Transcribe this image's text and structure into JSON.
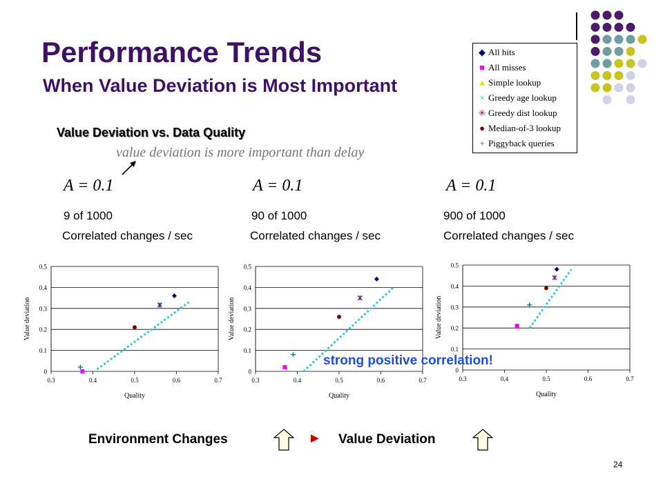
{
  "slide": {
    "title": "Performance Trends",
    "subtitle": "When Value Deviation is Most Important",
    "heading": "Value Deviation vs. Data Quality",
    "note": "value deviation is more important than delay",
    "correlation_note": "strong positive correlation!",
    "flow": {
      "left": "Environment Changes",
      "arrow": "►",
      "right": "Value Deviation"
    },
    "page_number": "24"
  },
  "legend": [
    {
      "label": "All hits",
      "symbol": "◆",
      "color": "#000080"
    },
    {
      "label": "All misses",
      "symbol": "■",
      "color": "#ff00ff"
    },
    {
      "label": "Simple lookup",
      "symbol": "▲",
      "color": "#e6e600"
    },
    {
      "label": "Greedy age lookup",
      "symbol": "×",
      "color": "#00cccc"
    },
    {
      "label": "Greedy dist lookup",
      "symbol": "✳",
      "color": "#800080"
    },
    {
      "label": "Median-of-3 lookup",
      "symbol": "●",
      "color": "#800000"
    },
    {
      "label": "Piggyback queries",
      "symbol": "+",
      "color": "#008080"
    }
  ],
  "panels": [
    {
      "a_label": "A = 0.1",
      "count": "9 of 1000",
      "caption": "Correlated changes / sec"
    },
    {
      "a_label": "A = 0.1",
      "count": "90 of 1000",
      "caption": "Correlated changes / sec"
    },
    {
      "a_label": "A = 0.1",
      "count": "900 of 1000",
      "caption": "Correlated changes / sec"
    }
  ],
  "decor_colors": {
    "purple": "#4b1c6a",
    "teal": "#6f9e9e",
    "olive": "#c8c41e",
    "lavender": "#d2d2e6"
  },
  "chart_data": [
    {
      "type": "scatter",
      "xlabel": "Quality",
      "ylabel": "Value deviation",
      "xlim": [
        0.3,
        0.7
      ],
      "ylim": [
        0,
        0.5
      ],
      "xticks": [
        "0.3",
        "0.4",
        "0.5",
        "0.6",
        "0.7"
      ],
      "yticks": [
        "0",
        "0.1",
        "0.2",
        "0.3",
        "0.4",
        "0.5"
      ],
      "grid": "horizontal",
      "trend": {
        "x": [
          0.41,
          0.63
        ],
        "y": [
          0.01,
          0.33
        ]
      },
      "points": [
        {
          "series": "All hits",
          "x": 0.595,
          "y": 0.36
        },
        {
          "series": "All misses",
          "x": 0.375,
          "y": 0.0
        },
        {
          "series": "Greedy age lookup",
          "x": 0.56,
          "y": 0.32
        },
        {
          "series": "Greedy dist lookup",
          "x": 0.56,
          "y": 0.315
        },
        {
          "series": "Median-of-3 lookup",
          "x": 0.5,
          "y": 0.21
        },
        {
          "series": "Piggyback queries",
          "x": 0.37,
          "y": 0.02
        }
      ]
    },
    {
      "type": "scatter",
      "xlabel": "Quality",
      "ylabel": "Value deviation",
      "xlim": [
        0.3,
        0.7
      ],
      "ylim": [
        0,
        0.5
      ],
      "xticks": [
        "0.3",
        "0.4",
        "0.5",
        "0.6",
        "0.7"
      ],
      "yticks": [
        "0",
        "0.1",
        "0.2",
        "0.3",
        "0.4",
        "0.5"
      ],
      "grid": "horizontal",
      "trend": {
        "x": [
          0.415,
          0.63
        ],
        "y": [
          0.0,
          0.4
        ]
      },
      "points": [
        {
          "series": "All hits",
          "x": 0.59,
          "y": 0.44
        },
        {
          "series": "All misses",
          "x": 0.37,
          "y": 0.02
        },
        {
          "series": "Greedy age lookup",
          "x": 0.55,
          "y": 0.35
        },
        {
          "series": "Greedy dist lookup",
          "x": 0.55,
          "y": 0.35
        },
        {
          "series": "Median-of-3 lookup",
          "x": 0.5,
          "y": 0.26
        },
        {
          "series": "Piggyback queries",
          "x": 0.39,
          "y": 0.08
        }
      ]
    },
    {
      "type": "scatter",
      "xlabel": "Quality",
      "ylabel": "Value deviation",
      "xlim": [
        0.3,
        0.7
      ],
      "ylim": [
        0,
        0.5
      ],
      "xticks": [
        "0.3",
        "0.4",
        "0.5",
        "0.6",
        "0.7"
      ],
      "yticks": [
        "0",
        "0.1",
        "0.2",
        "0.3",
        "0.4",
        "0.5"
      ],
      "grid": "horizontal",
      "trend": {
        "x": [
          0.46,
          0.56
        ],
        "y": [
          0.2,
          0.48
        ]
      },
      "points": [
        {
          "series": "All hits",
          "x": 0.525,
          "y": 0.48
        },
        {
          "series": "All misses",
          "x": 0.43,
          "y": 0.21
        },
        {
          "series": "Greedy age lookup",
          "x": 0.52,
          "y": 0.44
        },
        {
          "series": "Greedy dist lookup",
          "x": 0.52,
          "y": 0.44
        },
        {
          "series": "Median-of-3 lookup",
          "x": 0.5,
          "y": 0.39
        },
        {
          "series": "Piggyback queries",
          "x": 0.46,
          "y": 0.31
        }
      ]
    }
  ]
}
